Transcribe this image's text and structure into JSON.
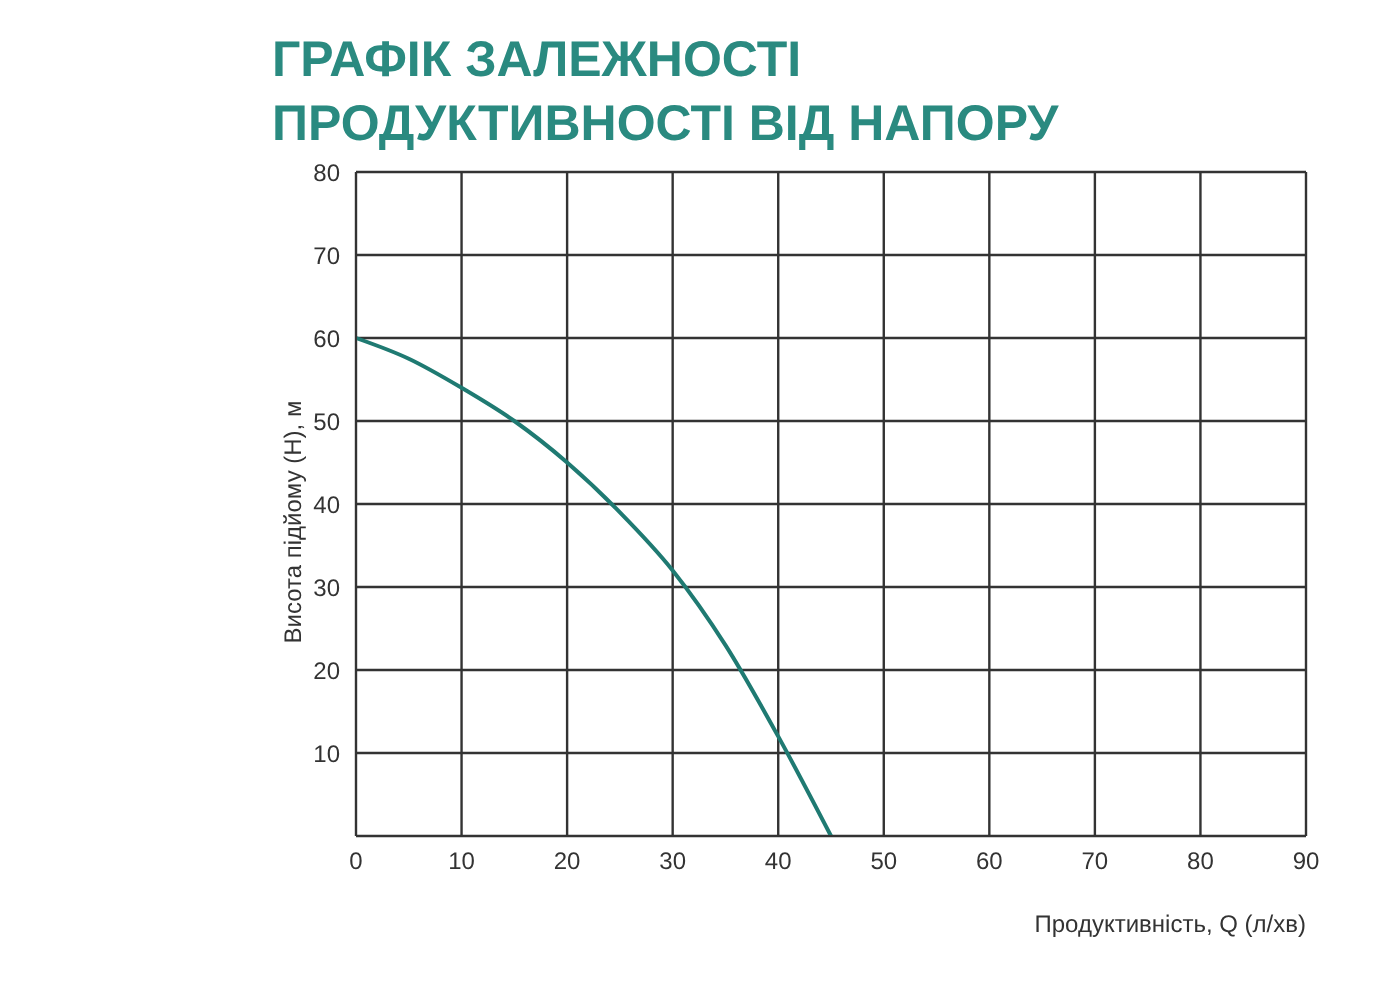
{
  "chart_data": {
    "type": "line",
    "title": "ГРАФІК ЗАЛЕЖНОСТІ ПРОДУКТИВНОСТІ ВІД НАПОРУ",
    "xlabel": "Продуктивність, Q (л/хв)",
    "ylabel": "Висота підйому (H), м",
    "x": [
      0,
      5,
      10,
      15,
      20,
      25,
      30,
      35,
      40,
      45
    ],
    "series": [
      {
        "color": "#1f7a72",
        "values": [
          60,
          57.5,
          54,
          50,
          45,
          39,
          32,
          23,
          12,
          0
        ]
      }
    ],
    "xlim": [
      0,
      90
    ],
    "xticks": [
      0,
      10,
      20,
      30,
      40,
      50,
      60,
      70,
      80,
      90
    ],
    "ylim": [
      0,
      80
    ],
    "yticks": [
      {
        "value": 0,
        "label": null
      },
      10,
      20,
      30,
      40,
      50,
      60,
      70,
      80
    ],
    "grid": true,
    "marker": "none",
    "line_style": "solid"
  }
}
